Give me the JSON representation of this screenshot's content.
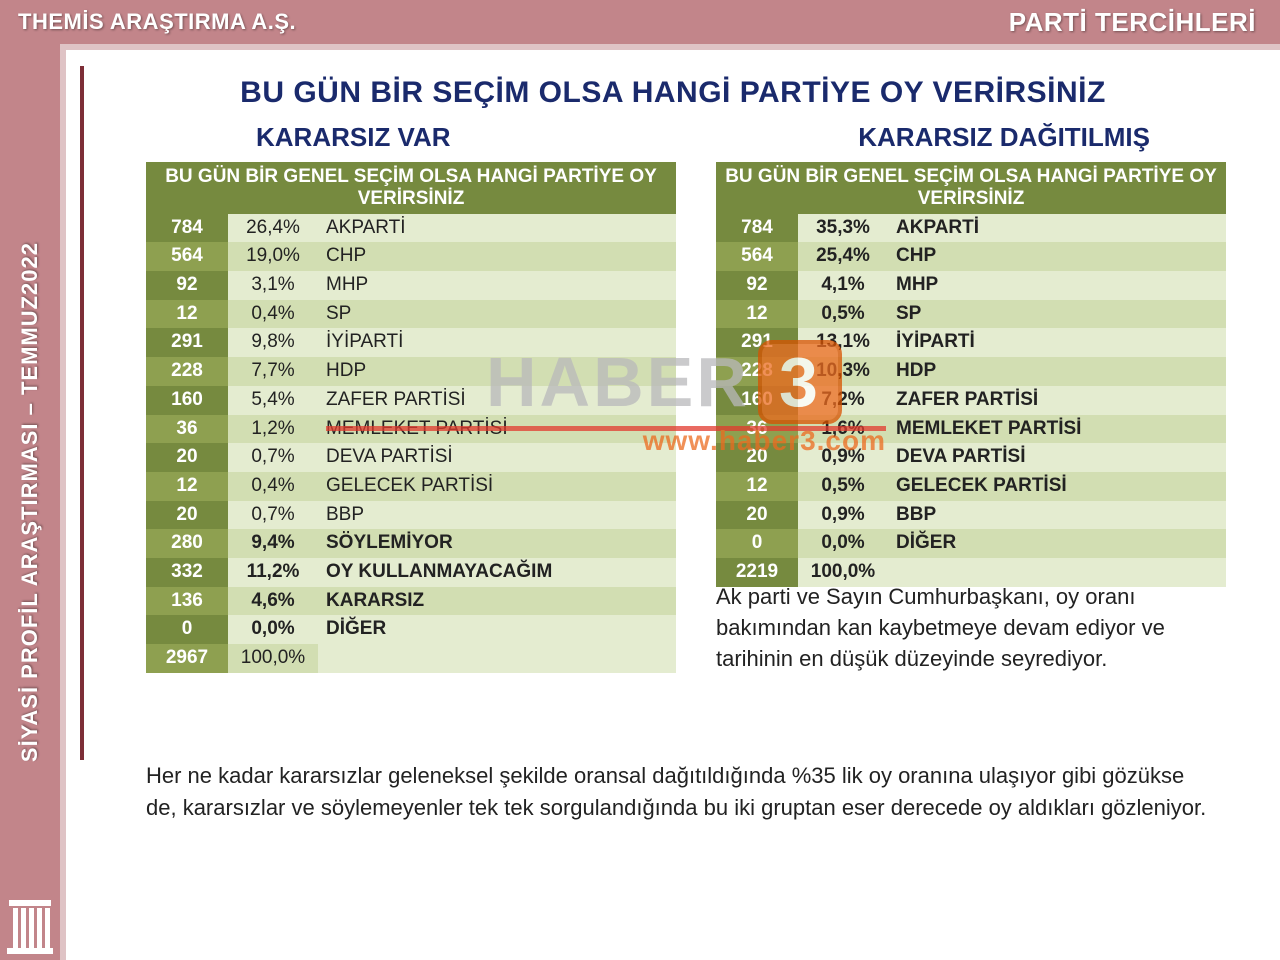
{
  "header": {
    "company": "THEMİS ARAŞTIRMA A.Ş.",
    "section": "PARTİ TERCİHLERİ"
  },
  "sidebar": {
    "label": "SİYASİ PROFİL ARAŞTIRMASI – TEMMUZ2022"
  },
  "title": "BU GÜN BİR SEÇİM OLSA HANGİ PARTİYE  OY VERİRSİNİZ",
  "subtitle_left": "KARARSIZ VAR",
  "subtitle_right": "KARARSIZ DAĞITILMIŞ",
  "table_header": "BU GÜN BİR GENEL SEÇİM OLSA HANGİ PARTİYE OY VERİRSİNİZ",
  "colors": {
    "header_bg": "#c2858a",
    "accent_line": "#7d2e37",
    "th_bg": "#768a3f",
    "row_odd_label": "#768a3f",
    "row_even_label": "#8ea050",
    "row_odd_cell": "#e4ecd0",
    "row_even_cell": "#d2deb2",
    "title_color": "#1a2a6c",
    "watermark_text": "#b9b9bb",
    "watermark_orange": "#ec6b1f",
    "watermark_red": "#e23a2e"
  },
  "table1": {
    "rows": [
      {
        "n": "784",
        "pct": "26,4%",
        "name": "AKPARTİ",
        "bold": false
      },
      {
        "n": "564",
        "pct": "19,0%",
        "name": "CHP",
        "bold": false
      },
      {
        "n": "92",
        "pct": "3,1%",
        "name": "MHP",
        "bold": false
      },
      {
        "n": "12",
        "pct": "0,4%",
        "name": "SP",
        "bold": false
      },
      {
        "n": "291",
        "pct": "9,8%",
        "name": "İYİPARTİ",
        "bold": false
      },
      {
        "n": "228",
        "pct": "7,7%",
        "name": "HDP",
        "bold": false
      },
      {
        "n": "160",
        "pct": "5,4%",
        "name": "ZAFER PARTİSİ",
        "bold": false
      },
      {
        "n": "36",
        "pct": "1,2%",
        "name": "MEMLEKET PARTİSİ",
        "bold": false
      },
      {
        "n": "20",
        "pct": "0,7%",
        "name": "DEVA PARTİSİ",
        "bold": false
      },
      {
        "n": "12",
        "pct": "0,4%",
        "name": "GELECEK PARTİSİ",
        "bold": false
      },
      {
        "n": "20",
        "pct": "0,7%",
        "name": "BBP",
        "bold": false
      },
      {
        "n": "280",
        "pct": "9,4%",
        "name": "SÖYLEMİYOR",
        "bold": true
      },
      {
        "n": "332",
        "pct": "11,2%",
        "name": "OY KULLANMAYACAĞIM",
        "bold": true
      },
      {
        "n": "136",
        "pct": "4,6%",
        "name": "KARARSIZ",
        "bold": true
      },
      {
        "n": "0",
        "pct": "0,0%",
        "name": "DİĞER",
        "bold": true
      },
      {
        "n": "2967",
        "pct": "100,0%",
        "name": "",
        "bold": false
      }
    ]
  },
  "table2": {
    "rows": [
      {
        "n": "784",
        "pct": "35,3%",
        "name": "AKPARTİ",
        "bold": true
      },
      {
        "n": "564",
        "pct": "25,4%",
        "name": "CHP",
        "bold": true
      },
      {
        "n": "92",
        "pct": "4,1%",
        "name": "MHP",
        "bold": true
      },
      {
        "n": "12",
        "pct": "0,5%",
        "name": "SP",
        "bold": true
      },
      {
        "n": "291",
        "pct": "13,1%",
        "name": "İYİPARTİ",
        "bold": true
      },
      {
        "n": "228",
        "pct": "10,3%",
        "name": "HDP",
        "bold": true
      },
      {
        "n": "160",
        "pct": "7,2%",
        "name": "ZAFER PARTİSİ",
        "bold": true
      },
      {
        "n": "36",
        "pct": "1,6%",
        "name": "MEMLEKET PARTİSİ",
        "bold": true
      },
      {
        "n": "20",
        "pct": "0,9%",
        "name": "DEVA PARTİSİ",
        "bold": true
      },
      {
        "n": "12",
        "pct": "0,5%",
        "name": "GELECEK PARTİSİ",
        "bold": true
      },
      {
        "n": "20",
        "pct": "0,9%",
        "name": "BBP",
        "bold": true
      },
      {
        "n": "0",
        "pct": "0,0%",
        "name": "DİĞER",
        "bold": true
      },
      {
        "n": "2219",
        "pct": "100,0%",
        "name": "",
        "bold": true
      }
    ]
  },
  "commentary1": "Ak parti  ve Sayın Cumhurbaşkanı, oy oranı bakımından kan kaybetmeye devam ediyor ve tarihinin en düşük düzeyinde seyrediyor.",
  "commentary2": "Her ne kadar kararsızlar geleneksel şekilde oransal dağıtıldığında %35 lik oy oranına ulaşıyor gibi gözükse de, kararsızlar ve söylemeyenler tek tek sorgulandığında bu iki gruptan eser derecede oy aldıkları gözleniyor.",
  "watermark": {
    "text": "HABER",
    "num": "3",
    "url": "www.haber3.com"
  }
}
